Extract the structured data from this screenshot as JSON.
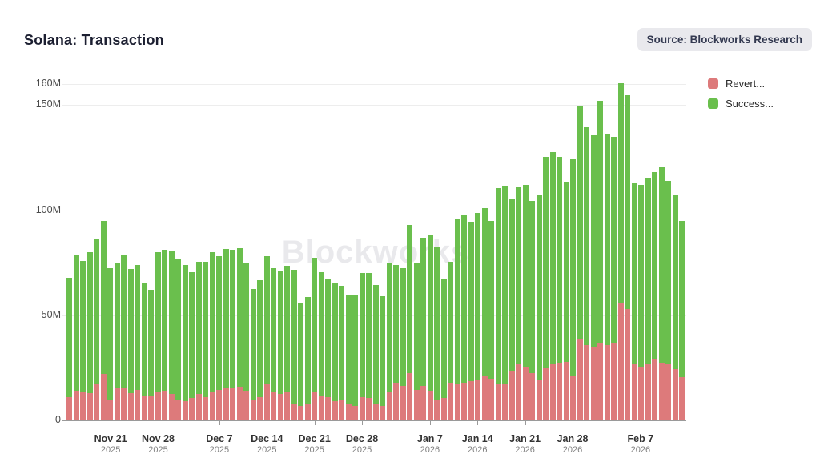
{
  "header": {
    "title": "Solana: Transaction",
    "source_badge": "Source: Blockworks Research"
  },
  "watermark": "Blockworks",
  "legend": [
    {
      "label": "Revert...",
      "color": "#dd7a7b"
    },
    {
      "label": "Success...",
      "color": "#6abf4d"
    }
  ],
  "chart_data": {
    "type": "bar",
    "stacked": true,
    "title": "Solana: Transaction",
    "unit": "M transactions",
    "ylim": [
      0,
      160
    ],
    "grid": "horizontal",
    "legend_position": "top-right",
    "start_date": "Nov 15, 2025",
    "end_date": "Feb 13, 2026",
    "y_ticks": [
      {
        "value": 0,
        "label": "0"
      },
      {
        "value": 50,
        "label": "50M"
      },
      {
        "value": 100,
        "label": "100M"
      },
      {
        "value": 150,
        "label": "150M"
      },
      {
        "value": 160,
        "label": "160M"
      }
    ],
    "x_ticks": [
      {
        "index": 6,
        "label": "Nov 21",
        "year": "2025"
      },
      {
        "index": 13,
        "label": "Nov 28",
        "year": "2025"
      },
      {
        "index": 22,
        "label": "Dec 7",
        "year": "2025"
      },
      {
        "index": 29,
        "label": "Dec 14",
        "year": "2025"
      },
      {
        "index": 36,
        "label": "Dec 21",
        "year": "2025"
      },
      {
        "index": 43,
        "label": "Dec 28",
        "year": "2025"
      },
      {
        "index": 53,
        "label": "Jan 7",
        "year": "2026"
      },
      {
        "index": 60,
        "label": "Jan 14",
        "year": "2026"
      },
      {
        "index": 67,
        "label": "Jan 21",
        "year": "2026"
      },
      {
        "index": 74,
        "label": "Jan 28",
        "year": "2026"
      },
      {
        "index": 84,
        "label": "Feb 7",
        "year": "2026"
      }
    ],
    "categories": [
      "Nov 15",
      "Nov 16",
      "Nov 17",
      "Nov 18",
      "Nov 19",
      "Nov 20",
      "Nov 21",
      "Nov 22",
      "Nov 23",
      "Nov 24",
      "Nov 25",
      "Nov 26",
      "Nov 27",
      "Nov 28",
      "Nov 29",
      "Nov 30",
      "Dec 1",
      "Dec 2",
      "Dec 3",
      "Dec 4",
      "Dec 5",
      "Dec 6",
      "Dec 7",
      "Dec 8",
      "Dec 9",
      "Dec 10",
      "Dec 11",
      "Dec 12",
      "Dec 13",
      "Dec 14",
      "Dec 15",
      "Dec 16",
      "Dec 17",
      "Dec 18",
      "Dec 19",
      "Dec 20",
      "Dec 21",
      "Dec 22",
      "Dec 23",
      "Dec 24",
      "Dec 25",
      "Dec 26",
      "Dec 27",
      "Dec 28",
      "Dec 29",
      "Dec 30",
      "Dec 31",
      "Jan 1",
      "Jan 2",
      "Jan 3",
      "Jan 4",
      "Jan 5",
      "Jan 6",
      "Jan 7",
      "Jan 8",
      "Jan 9",
      "Jan 10",
      "Jan 11",
      "Jan 12",
      "Jan 13",
      "Jan 14",
      "Jan 15",
      "Jan 16",
      "Jan 17",
      "Jan 18",
      "Jan 19",
      "Jan 20",
      "Jan 21",
      "Jan 22",
      "Jan 23",
      "Jan 24",
      "Jan 25",
      "Jan 26",
      "Jan 27",
      "Jan 28",
      "Jan 29",
      "Jan 30",
      "Jan 31",
      "Feb 1",
      "Feb 2",
      "Feb 3",
      "Feb 4",
      "Feb 5",
      "Feb 6",
      "Feb 7",
      "Feb 8",
      "Feb 9",
      "Feb 10",
      "Feb 11",
      "Feb 12",
      "Feb 13"
    ],
    "series": [
      {
        "name": "Revert...",
        "color": "#dd7a7b",
        "values": [
          11,
          14,
          13.5,
          13,
          17,
          22,
          10,
          15.5,
          15.5,
          13,
          14.5,
          12,
          11.5,
          13.5,
          14,
          12.5,
          9.5,
          9,
          10.5,
          12.5,
          11,
          13.5,
          14.5,
          15.5,
          15.5,
          16,
          14,
          10,
          11,
          17,
          13.5,
          12.5,
          13.5,
          8,
          7,
          7.5,
          13.5,
          12,
          11,
          9,
          9.5,
          7.5,
          7,
          11,
          10.5,
          8,
          7,
          13.5,
          18,
          16.5,
          22.5,
          14.5,
          16.5,
          14,
          9.5,
          10.5,
          18,
          17.5,
          18,
          18.5,
          19,
          21,
          20,
          17.5,
          17.5,
          23.5,
          26.5,
          25.5,
          22.5,
          19,
          25,
          27,
          27.5,
          28,
          21,
          39,
          36,
          34.5,
          37,
          36,
          36.5,
          56,
          53,
          26.5,
          25.5,
          27,
          29.5,
          27.5,
          26.5,
          24.5,
          20.5
        ]
      },
      {
        "name": "Success...",
        "color": "#6abf4d",
        "values": [
          57,
          65,
          62.5,
          67,
          69,
          73,
          62.5,
          59.5,
          63,
          59,
          59.5,
          53.5,
          50.5,
          66.5,
          67,
          68,
          67,
          65,
          60,
          63,
          64.5,
          66.5,
          63.5,
          66,
          65.5,
          66,
          60.5,
          52.5,
          55.5,
          61,
          59,
          58.5,
          60,
          63.5,
          49,
          51,
          64,
          58.5,
          56.5,
          56.5,
          54.5,
          52,
          52.5,
          59,
          59.5,
          56.5,
          52,
          61,
          56,
          56,
          70.5,
          60.5,
          70.5,
          74.5,
          73,
          57,
          57.5,
          78.5,
          79.5,
          76,
          79.5,
          80,
          75,
          93,
          94,
          82,
          84.5,
          86.5,
          82,
          88,
          100.5,
          100.5,
          98,
          85.5,
          103.5,
          110.5,
          103.5,
          101,
          115,
          100.5,
          98.5,
          104.5,
          101.5,
          86.5,
          86.5,
          88.5,
          88.5,
          93,
          87.5,
          82.5,
          74.5
        ]
      }
    ]
  }
}
